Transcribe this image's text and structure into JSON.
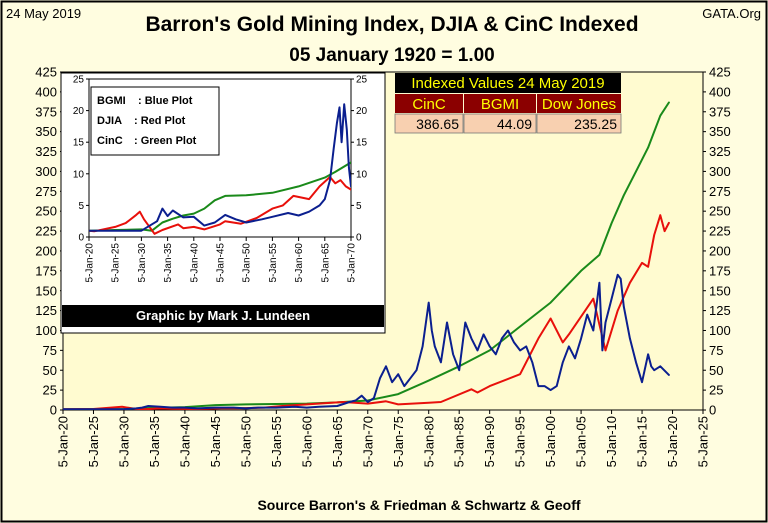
{
  "header": {
    "date_stamp": "24 May 2019",
    "source_tag": "GATA.Org",
    "title": "Barron's Gold Mining Index, DJIA & CinC Indexed",
    "subtitle": "05 January 1920 = 1.00",
    "footer": "Source Barron's & Friedman & Schwartz & Geoff"
  },
  "colors": {
    "background": "#fffde0",
    "plot_area": "#fffbd0",
    "frame": "#000000",
    "bgmi": "#0b1f8f",
    "djia": "#e8100b",
    "cinc": "#1a8a1a",
    "table_header_bg": "#000000",
    "table_header_text": "#ffff00",
    "table_col_bg": "#8b0000",
    "table_col_text": "#ffff00",
    "table_value_bg": "#f8d0b0"
  },
  "table": {
    "title": "Indexed Values 24 May 2019",
    "headers": [
      "CinC",
      "BGMI",
      "Dow Jones"
    ],
    "values": [
      "386.65",
      "44.09",
      "235.25"
    ]
  },
  "inset": {
    "legend": [
      {
        "name": "BGMI",
        "desc": ": Blue Plot"
      },
      {
        "name": "DJIA",
        "desc": ": Red Plot"
      },
      {
        "name": "CinC",
        "desc": ": Green Plot"
      }
    ],
    "credit": "Graphic by Mark J. Lundeen"
  },
  "chart_data": [
    {
      "type": "line",
      "role": "main",
      "x_start": 1920,
      "x_end": 2025,
      "ylim": [
        0,
        425
      ],
      "y_ticks": [
        0,
        25,
        50,
        75,
        100,
        125,
        150,
        175,
        200,
        225,
        250,
        275,
        300,
        325,
        350,
        375,
        400,
        425
      ],
      "y_ticks_right": true,
      "x_tick_labels": [
        "5-Jan-20",
        "5-Jan-25",
        "5-Jan-30",
        "5-Jan-35",
        "5-Jan-40",
        "5-Jan-45",
        "5-Jan-50",
        "5-Jan-55",
        "5-Jan-60",
        "5-Jan-65",
        "5-Jan-70",
        "5-Jan-75",
        "5-Jan-80",
        "5-Jan-85",
        "5-Jan-90",
        "5-Jan-95",
        "5-Jan-00",
        "5-Jan-05",
        "5-Jan-10",
        "5-Jan-15",
        "5-Jan-20",
        "5-Jan-25"
      ],
      "grid": false,
      "series": [
        {
          "key": "cinc",
          "x": [
            1920,
            1925,
            1930,
            1935,
            1940,
            1945,
            1950,
            1955,
            1960,
            1965,
            1970,
            1975,
            1980,
            1985,
            1990,
            1995,
            2000,
            2005,
            2008,
            2010,
            2012,
            2014,
            2016,
            2018,
            2019.4
          ],
          "y": [
            1,
            1.1,
            1.3,
            2.7,
            3.6,
            6.2,
            7,
            7.5,
            8,
            9.5,
            12,
            20,
            37,
            55,
            75,
            105,
            135,
            175,
            195,
            235,
            270,
            300,
            330,
            370,
            386.65
          ]
        },
        {
          "key": "djia",
          "x": [
            1920,
            1925,
            1929.7,
            1932.5,
            1936,
            1938,
            1942,
            1946,
            1949,
            1953,
            1956,
            1960,
            1965,
            1966,
            1970,
            1973,
            1975,
            1980,
            1982,
            1987,
            1988,
            1990,
            1995,
            1998,
            2000,
            2002,
            2003,
            2007,
            2009,
            2011,
            2013,
            2015,
            2016,
            2017,
            2018,
            2018.7,
            2019.4
          ],
          "y": [
            1,
            1.2,
            4,
            0.6,
            2,
            1.5,
            1.2,
            2.3,
            2.2,
            3,
            5,
            7,
            9.5,
            10,
            8,
            11,
            7,
            9,
            10,
            26,
            22,
            30,
            45,
            90,
            115,
            85,
            95,
            140,
            75,
            125,
            160,
            185,
            180,
            220,
            245,
            225,
            235.25
          ]
        },
        {
          "key": "bgmi",
          "x": [
            1920,
            1930,
            1932,
            1933,
            1934,
            1936,
            1938,
            1940,
            1942,
            1945,
            1948,
            1950,
            1952,
            1955,
            1958,
            1960,
            1962,
            1965,
            1967,
            1968,
            1969,
            1970,
            1971,
            1972,
            1973,
            1974,
            1975,
            1976,
            1977,
            1978,
            1979,
            1980,
            1980.5,
            1981,
            1982,
            1983,
            1984,
            1985,
            1986,
            1987,
            1988,
            1989,
            1990,
            1991,
            1992,
            1993,
            1994,
            1995,
            1996,
            1997,
            1998,
            1999,
            2000,
            2001,
            2002,
            2003,
            2004,
            2005,
            2006,
            2007,
            2008,
            2008.5,
            2009,
            2010,
            2011,
            2011.5,
            2012,
            2013,
            2014,
            2015,
            2016,
            2016.5,
            2017,
            2018,
            2019.4
          ],
          "y": [
            1,
            1,
            2,
            3,
            5,
            4,
            3,
            3,
            2,
            3,
            3,
            2,
            3,
            3,
            4,
            3,
            4,
            5,
            10,
            12,
            18,
            10,
            15,
            40,
            55,
            35,
            45,
            30,
            40,
            50,
            80,
            135,
            100,
            80,
            60,
            110,
            70,
            50,
            110,
            90,
            75,
            95,
            80,
            70,
            90,
            100,
            85,
            75,
            80,
            60,
            30,
            30,
            25,
            30,
            60,
            80,
            65,
            90,
            120,
            100,
            160,
            75,
            110,
            140,
            170,
            165,
            130,
            90,
            60,
            35,
            70,
            55,
            50,
            55,
            44.09
          ]
        }
      ]
    },
    {
      "type": "line",
      "role": "inset",
      "x_start": 1920,
      "x_end": 1970,
      "ylim": [
        0,
        25
      ],
      "y_ticks": [
        0,
        5,
        10,
        15,
        20,
        25
      ],
      "y_ticks_right": true,
      "x_tick_labels": [
        "5-Jan-20",
        "5-Jan-25",
        "5-Jan-30",
        "5-Jan-35",
        "5-Jan-40",
        "5-Jan-45",
        "5-Jan-50",
        "5-Jan-55",
        "5-Jan-60",
        "5-Jan-65",
        "5-Jan-70"
      ],
      "grid": false,
      "series": [
        {
          "key": "cinc",
          "x": [
            1920,
            1925,
            1930,
            1932,
            1934,
            1936,
            1938,
            1940,
            1942,
            1944,
            1946,
            1950,
            1955,
            1960,
            1965,
            1967,
            1970
          ],
          "y": [
            1,
            1.1,
            1.2,
            1,
            2.3,
            2.9,
            3.4,
            3.7,
            4.5,
            5.8,
            6.5,
            6.6,
            7,
            8,
            9.4,
            10.3,
            11.8
          ]
        },
        {
          "key": "djia",
          "x": [
            1920,
            1921,
            1925,
            1927,
            1929,
            1929.7,
            1930.5,
            1932.5,
            1934,
            1937,
            1938,
            1940,
            1942,
            1945,
            1946,
            1949,
            1952,
            1955,
            1957,
            1959,
            1962,
            1964,
            1966,
            1967,
            1968,
            1969,
            1970
          ],
          "y": [
            1,
            0.9,
            1.6,
            2.2,
            3.5,
            4,
            2.8,
            0.5,
            1.1,
            2,
            1.4,
            1.6,
            1.2,
            2,
            2.5,
            2.1,
            3,
            4.5,
            5,
            6.5,
            6,
            8,
            9.5,
            8.5,
            9,
            8,
            7.5
          ]
        },
        {
          "key": "bgmi",
          "x": [
            1920,
            1930,
            1933,
            1934,
            1935,
            1936,
            1938,
            1940,
            1942,
            1944,
            1946,
            1948,
            1950,
            1953,
            1955,
            1958,
            1960,
            1962,
            1964,
            1965,
            1966,
            1966.7,
            1967.3,
            1967.8,
            1968.2,
            1968.7,
            1969.2,
            1969.6,
            1970
          ],
          "y": [
            1,
            1,
            2.5,
            4.5,
            3.3,
            4.2,
            3.1,
            3.2,
            1.8,
            2.3,
            3.5,
            2.8,
            2.3,
            2.8,
            3.2,
            3.8,
            3.4,
            4,
            5,
            6,
            9,
            14,
            18,
            20.5,
            15,
            21,
            17,
            11,
            8
          ]
        }
      ]
    }
  ]
}
